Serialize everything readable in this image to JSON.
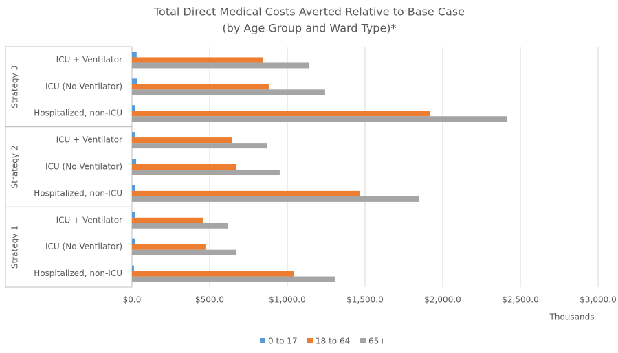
{
  "chart_data": {
    "type": "bar",
    "orientation": "horizontal",
    "title": "Total Direct Medical Costs Averted Relative to Base Case",
    "subtitle": "(by Age Group and Ward Type)*",
    "x_label": "Thousands",
    "groups": [
      {
        "name": "Strategy 3",
        "categories": [
          "ICU + Ventilator",
          "ICU (No Ventilator)",
          "Hospitalized, non-ICU"
        ]
      },
      {
        "name": "Strategy 2",
        "categories": [
          "ICU + Ventilator",
          "ICU (No Ventilator)",
          "Hospitalized, non-ICU"
        ]
      },
      {
        "name": "Strategy 1",
        "categories": [
          "ICU + Ventilator",
          "ICU (No Ventilator)",
          "Hospitalized, non-ICU"
        ]
      }
    ],
    "series": [
      {
        "name": "0 to 17",
        "color": "#5b9bd5",
        "values": [
          30,
          35,
          22,
          22,
          27,
          18,
          18,
          18,
          13
        ]
      },
      {
        "name": "18 to 64",
        "color": "#ed7d31",
        "values": [
          845,
          880,
          1920,
          646,
          673,
          1465,
          456,
          473,
          1040
        ]
      },
      {
        "name": "65+",
        "color": "#a5a5a5",
        "values": [
          1142,
          1243,
          2416,
          872,
          951,
          1845,
          615,
          673,
          1305
        ]
      }
    ],
    "xlim": [
      0,
      3000
    ],
    "xticks": [
      {
        "value": 0,
        "label": "$0.0"
      },
      {
        "value": 500,
        "label": "$500.0"
      },
      {
        "value": 1000,
        "label": "$1,000.0"
      },
      {
        "value": 1500,
        "label": "$1,500.0"
      },
      {
        "value": 2000,
        "label": "$2,000.0"
      },
      {
        "value": 2500,
        "label": "$2,500.0"
      },
      {
        "value": 3000,
        "label": "$3,000.0"
      }
    ],
    "grid": true,
    "legend": "bottom"
  }
}
